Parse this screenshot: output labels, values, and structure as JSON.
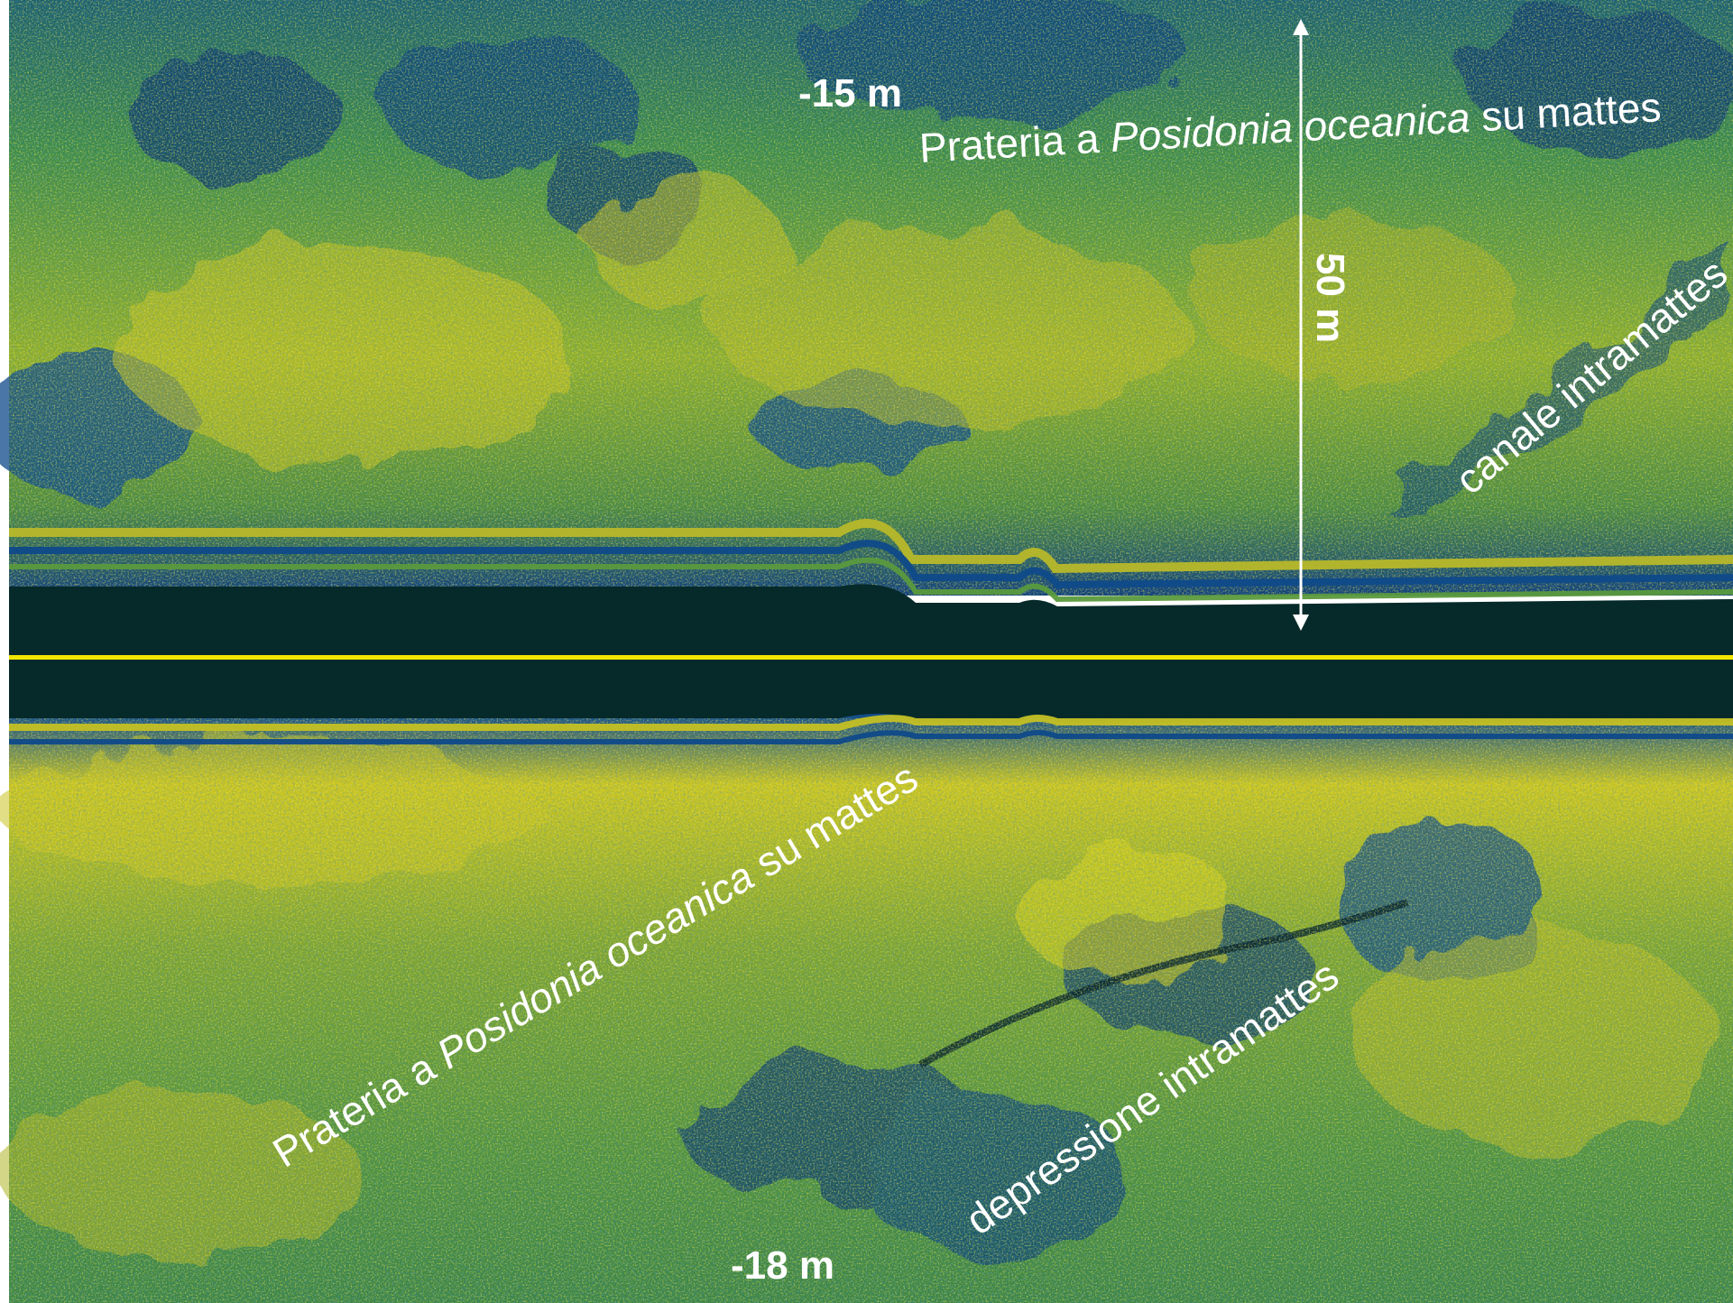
{
  "labels": {
    "depth_top": "-15 m",
    "depth_bottom": "-18 m",
    "scale_bar": "50 m",
    "meadow_top_prefix": "Prateria a ",
    "meadow_top_species": "Posidonia oceanica",
    "meadow_top_suffix": " su mattes",
    "meadow_bottom_prefix": "Prateria a ",
    "meadow_bottom_species": "Posidonia oceanica",
    "meadow_bottom_suffix": " su mattes",
    "channel": "canale intramattes",
    "depression": "depressione intramattes"
  },
  "colors": {
    "water_column": "#062a2a",
    "nadir_line": "#f2e600",
    "seabed_yellow": "#d9d21a",
    "seabed_green": "#3f8f3a",
    "seabed_blue": "#0f4a8a",
    "dark_patch": "#052229",
    "label": "#ffffff"
  }
}
